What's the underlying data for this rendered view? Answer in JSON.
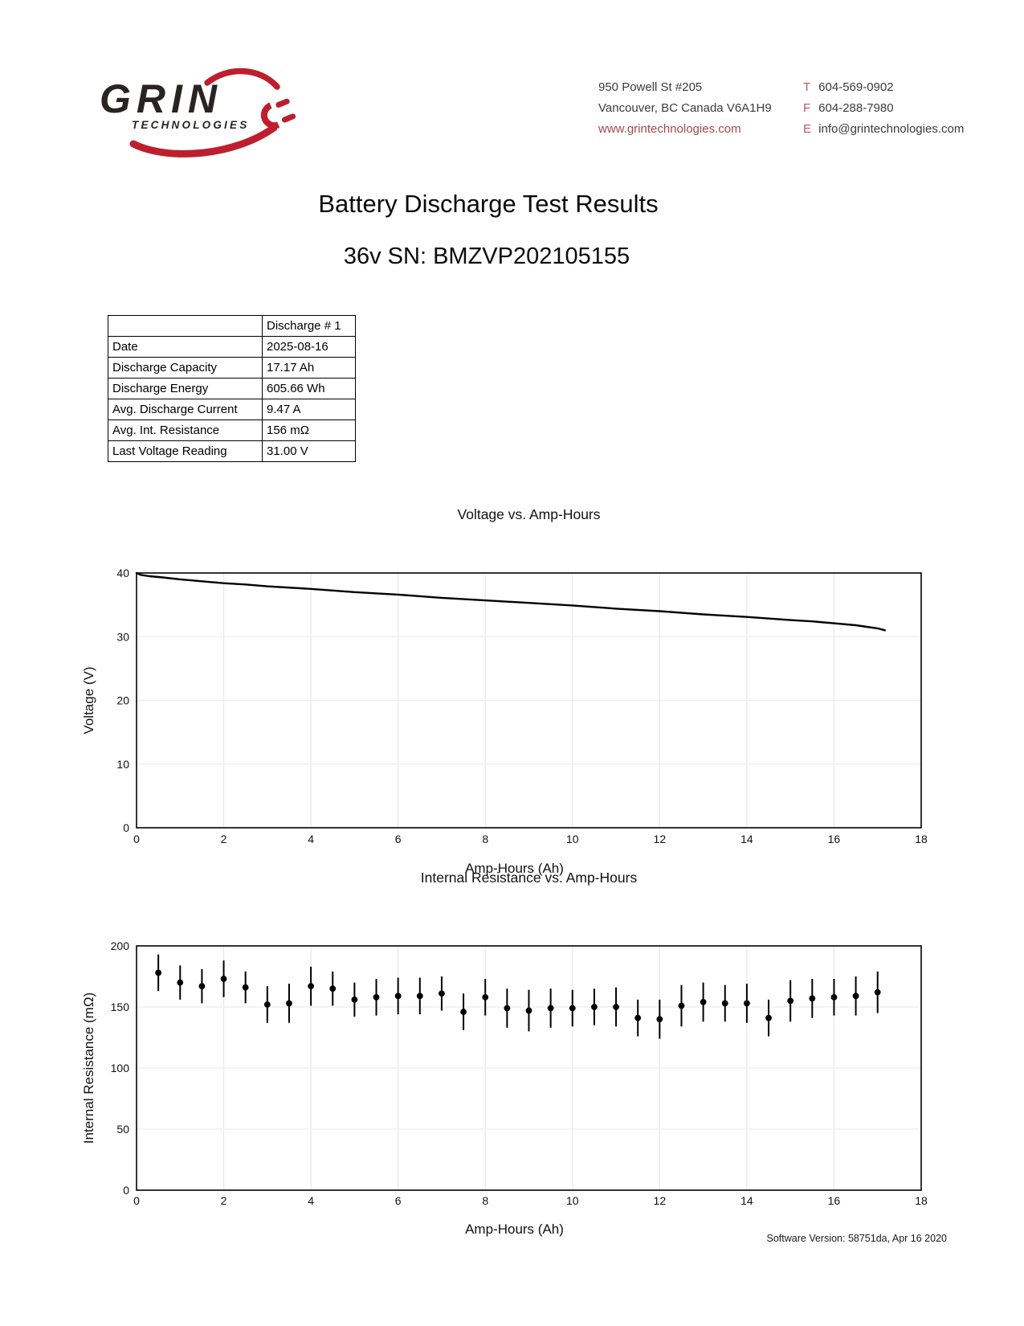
{
  "page": {
    "title_line1": "Battery Discharge Test Results",
    "title_line2": "36v SN: BMZVP202105155",
    "footer": "Software Version: 58751da, Apr 16 2020"
  },
  "logo": {
    "name": "GRIN",
    "sub": "TECHNOLOGIES",
    "brand_red": "#be1e2d",
    "brand_dark": "#2a2421"
  },
  "contact": {
    "address_line1": "950 Powell St #205",
    "address_line2": "Vancouver, BC Canada V6A1H9",
    "website": "www.grintechnologies.com",
    "phone_prefix": "T",
    "phone": "604-569-0902",
    "fax_prefix": "F",
    "fax": "604-288-7980",
    "email_prefix": "E",
    "email": "info@grintechnologies.com",
    "accent_red": "#c4555d",
    "link_red": "#a3494f"
  },
  "table": {
    "header": "Discharge # 1",
    "rows": [
      {
        "label": "Date",
        "value": "2025-08-16"
      },
      {
        "label": "Discharge Capacity",
        "value": "17.17 Ah"
      },
      {
        "label": "Discharge Energy",
        "value": "605.66 Wh"
      },
      {
        "label": "Avg. Discharge Current",
        "value": "9.47 A"
      },
      {
        "label": "Avg. Int. Resistance",
        "value": "156 mΩ"
      },
      {
        "label": "Last Voltage Reading",
        "value": "31.00 V"
      }
    ]
  },
  "chart_data": [
    {
      "type": "line",
      "title": "Voltage vs. Amp-Hours",
      "xlabel": "Amp-Hours (Ah)",
      "ylabel": "Voltage (V)",
      "xlim": [
        0,
        18
      ],
      "ylim": [
        0,
        40
      ],
      "xticks": [
        0,
        2,
        4,
        6,
        8,
        10,
        12,
        14,
        16,
        18
      ],
      "yticks": [
        0,
        10,
        20,
        30,
        40
      ],
      "grid": true,
      "line_color": "#000000",
      "series": [
        {
          "name": "voltage",
          "x": [
            0,
            0.1,
            0.3,
            0.6,
            1,
            1.5,
            2,
            2.5,
            3,
            4,
            5,
            6,
            7,
            8,
            9,
            10,
            11,
            12,
            13,
            14,
            15,
            15.5,
            16,
            16.5,
            17,
            17.17
          ],
          "y": [
            40,
            39.7,
            39.5,
            39.3,
            39.0,
            38.7,
            38.4,
            38.2,
            37.9,
            37.5,
            37.0,
            36.6,
            36.1,
            35.7,
            35.3,
            34.9,
            34.4,
            34.0,
            33.5,
            33.1,
            32.6,
            32.4,
            32.1,
            31.8,
            31.3,
            31.0
          ]
        }
      ]
    },
    {
      "type": "scatter",
      "title": "Internal Resistance vs. Amp-Hours",
      "xlabel": "Amp-Hours (Ah)",
      "ylabel": "Internal Resistance (mΩ)",
      "xlim": [
        0,
        18
      ],
      "ylim": [
        0,
        200
      ],
      "xticks": [
        0,
        2,
        4,
        6,
        8,
        10,
        12,
        14,
        16,
        18
      ],
      "yticks": [
        0,
        50,
        100,
        150,
        200
      ],
      "grid": true,
      "marker_color": "#000000",
      "error_bars": true,
      "x": [
        0.5,
        1.0,
        1.5,
        2.0,
        2.5,
        3.0,
        3.5,
        4.0,
        4.5,
        5.0,
        5.5,
        6.0,
        6.5,
        7.0,
        7.5,
        8.0,
        8.5,
        9.0,
        9.5,
        10.0,
        10.5,
        11.0,
        11.5,
        12.0,
        12.5,
        13.0,
        13.5,
        14.0,
        14.5,
        15.0,
        15.5,
        16.0,
        16.5,
        17.0
      ],
      "y": [
        178,
        170,
        167,
        173,
        166,
        152,
        153,
        167,
        165,
        156,
        158,
        159,
        159,
        161,
        146,
        158,
        149,
        147,
        149,
        149,
        150,
        150,
        141,
        140,
        151,
        154,
        153,
        153,
        141,
        155,
        157,
        158,
        159,
        162
      ],
      "yerr": [
        15,
        14,
        14,
        15,
        13,
        15,
        16,
        16,
        14,
        14,
        15,
        15,
        15,
        14,
        15,
        15,
        16,
        17,
        16,
        15,
        15,
        16,
        15,
        16,
        17,
        16,
        15,
        16,
        15,
        17,
        16,
        15,
        16,
        17
      ]
    }
  ]
}
